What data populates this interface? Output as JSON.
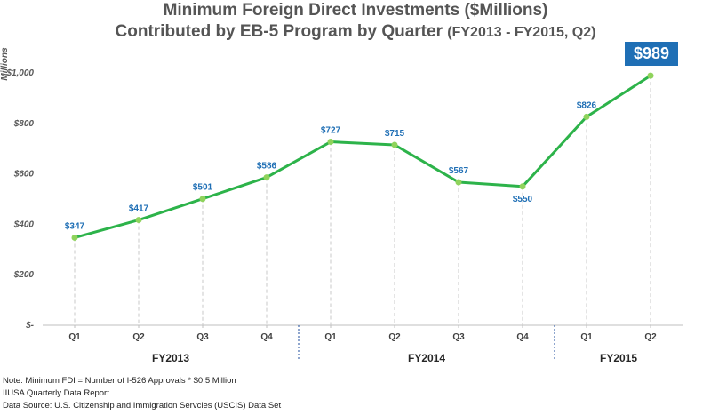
{
  "chart_data": {
    "type": "line",
    "title": "Minimum Foreign Direct Investments ($Millions)",
    "subtitle": "Contributed by EB-5 Program by Quarter",
    "subtitle_range": "(FY2013 - FY2015, Q2)",
    "ylabel": "Millions",
    "ylim": [
      0,
      1000
    ],
    "yticks": [
      "$-",
      "$200",
      "$400",
      "$600",
      "$800",
      "$1,000"
    ],
    "categories": [
      "Q1",
      "Q2",
      "Q3",
      "Q4",
      "Q1",
      "Q2",
      "Q3",
      "Q4",
      "Q1",
      "Q2"
    ],
    "groups": [
      {
        "label": "FY2013",
        "count": 4
      },
      {
        "label": "FY2014",
        "count": 4
      },
      {
        "label": "FY2015",
        "count": 2
      }
    ],
    "series": [
      {
        "values": [
          347,
          417,
          501,
          586,
          727,
          715,
          567,
          550,
          826,
          989
        ],
        "labels": [
          "$347",
          "$417",
          "$501",
          "$586",
          "$727",
          "$715",
          "$567",
          "$550",
          "$826",
          "$989"
        ],
        "color": "#2db34a",
        "marker_color": "#8fd35c"
      }
    ],
    "highlight_label": "$989",
    "grid": false
  },
  "notes": [
    "Note: Minimum FDI = Number of I-526 Approvals * $0.5 Million",
    "IIUSA Quarterly Data Report",
    "Data Source: U.S. Citizenship and Immigration Servcies (USCIS) Data Set"
  ]
}
